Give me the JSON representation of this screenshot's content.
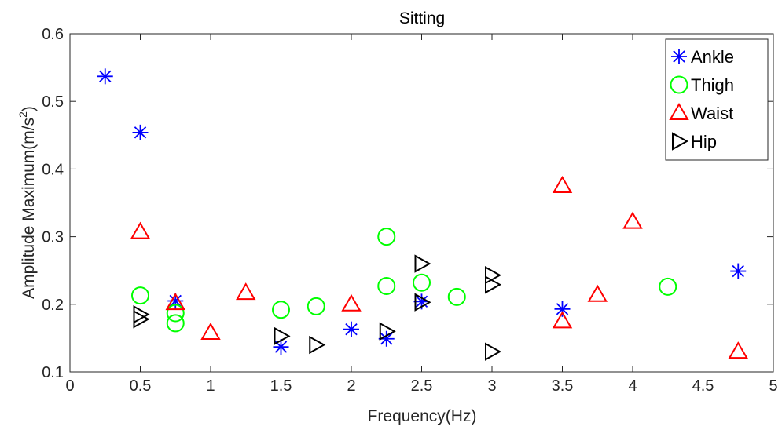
{
  "chart_data": {
    "type": "scatter",
    "title": "Sitting",
    "xlabel": "Frequency(Hz)",
    "ylabel": "Amplitude Maximum(m/s",
    "ylabel_sup": "2",
    "ylabel_close": ")",
    "xlim": [
      0,
      5
    ],
    "ylim": [
      0.1,
      0.6
    ],
    "xticks": [
      0,
      0.5,
      1,
      1.5,
      2,
      2.5,
      3,
      3.5,
      4,
      4.5,
      5
    ],
    "xtick_labels": [
      "0",
      "0.5",
      "1",
      "1.5",
      "2",
      "2.5",
      "3",
      "3.5",
      "4",
      "4.5",
      "5"
    ],
    "yticks": [
      0.1,
      0.2,
      0.3,
      0.4,
      0.5,
      0.6
    ],
    "ytick_labels": [
      "0.1",
      "0.2",
      "0.3",
      "0.4",
      "0.5",
      "0.6"
    ],
    "grid": false,
    "legend_position": "top-right",
    "series": [
      {
        "name": "Ankle",
        "marker": "asterisk",
        "color": "#0000ff",
        "points": [
          [
            0.25,
            0.537
          ],
          [
            0.5,
            0.454
          ],
          [
            0.75,
            0.205
          ],
          [
            1.5,
            0.137
          ],
          [
            2.0,
            0.163
          ],
          [
            2.25,
            0.149
          ],
          [
            2.5,
            0.204
          ],
          [
            3.5,
            0.193
          ],
          [
            4.75,
            0.249
          ]
        ]
      },
      {
        "name": "Thigh",
        "marker": "circle",
        "color": "#00ff00",
        "points": [
          [
            0.5,
            0.213
          ],
          [
            0.75,
            0.187
          ],
          [
            0.75,
            0.172
          ],
          [
            1.5,
            0.192
          ],
          [
            1.75,
            0.197
          ],
          [
            2.25,
            0.3
          ],
          [
            2.25,
            0.227
          ],
          [
            2.5,
            0.232
          ],
          [
            2.75,
            0.211
          ],
          [
            4.25,
            0.226
          ]
        ]
      },
      {
        "name": "Waist",
        "marker": "triangle-up",
        "color": "#ff0000",
        "points": [
          [
            0.5,
            0.307
          ],
          [
            0.75,
            0.202
          ],
          [
            1.0,
            0.158
          ],
          [
            1.25,
            0.217
          ],
          [
            2.0,
            0.2
          ],
          [
            3.5,
            0.375
          ],
          [
            3.5,
            0.175
          ],
          [
            3.75,
            0.214
          ],
          [
            4.0,
            0.322
          ],
          [
            4.75,
            0.13
          ]
        ]
      },
      {
        "name": "Hip",
        "marker": "triangle-right",
        "color": "#000000",
        "points": [
          [
            0.5,
            0.185
          ],
          [
            0.5,
            0.178
          ],
          [
            1.5,
            0.153
          ],
          [
            1.75,
            0.14
          ],
          [
            2.25,
            0.16
          ],
          [
            2.5,
            0.26
          ],
          [
            2.5,
            0.203
          ],
          [
            3.0,
            0.243
          ],
          [
            3.0,
            0.229
          ],
          [
            3.0,
            0.13
          ]
        ]
      }
    ]
  }
}
